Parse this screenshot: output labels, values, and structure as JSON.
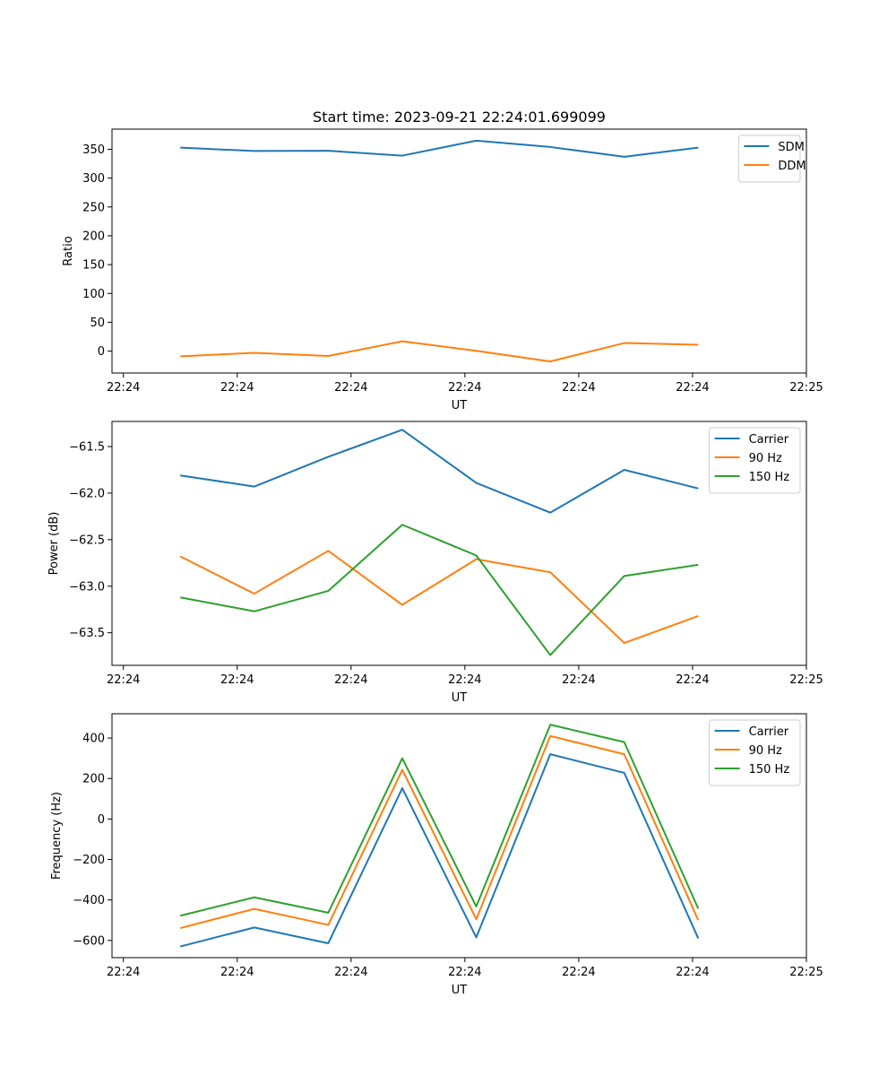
{
  "figure": {
    "title": "Start time: 2023-09-21 22:24:01.699099"
  },
  "colors": {
    "blue": "#1f77b4",
    "orange": "#ff7f0e",
    "green": "#2ca02c"
  },
  "chart_data": [
    {
      "type": "line",
      "xlabel": "UT",
      "ylabel": "Ratio",
      "x_positions": [
        0.5,
        1.15,
        1.8,
        2.45,
        3.1,
        3.75,
        4.4,
        5.05
      ],
      "xlim": [
        -0.1,
        6.0
      ],
      "x_ticks": [
        0,
        1,
        2,
        3,
        4,
        5,
        6
      ],
      "x_tick_labels": [
        "22:24",
        "22:24",
        "22:24",
        "22:24",
        "22:24",
        "22:24",
        "22:25"
      ],
      "ylim": [
        -38,
        385
      ],
      "y_ticks": [
        0,
        50,
        100,
        150,
        200,
        250,
        300,
        350
      ],
      "y_tick_labels": [
        "0",
        "50",
        "100",
        "150",
        "200",
        "250",
        "300",
        "350"
      ],
      "legend_position": "top-right",
      "series": [
        {
          "name": "SDM",
          "color": "blue",
          "values": [
            353,
            347,
            347.5,
            339,
            365,
            354,
            337,
            353
          ]
        },
        {
          "name": "DDM",
          "color": "orange",
          "values": [
            -9,
            -3,
            -8.5,
            17,
            0.5,
            -18,
            14,
            11
          ]
        }
      ]
    },
    {
      "type": "line",
      "xlabel": "UT",
      "ylabel": "Power (dB)",
      "x_positions": [
        0.5,
        1.15,
        1.8,
        2.45,
        3.1,
        3.75,
        4.4,
        5.05
      ],
      "xlim": [
        -0.1,
        6.0
      ],
      "x_ticks": [
        0,
        1,
        2,
        3,
        4,
        5,
        6
      ],
      "x_tick_labels": [
        "22:24",
        "22:24",
        "22:24",
        "22:24",
        "22:24",
        "22:24",
        "22:25"
      ],
      "ylim": [
        -63.85,
        -61.23
      ],
      "y_ticks": [
        -63.5,
        -63.0,
        -62.5,
        -62.0,
        -61.5
      ],
      "y_tick_labels": [
        "−63.5",
        "−63.0",
        "−62.5",
        "−62.0",
        "−61.5"
      ],
      "legend_position": "top-right",
      "series": [
        {
          "name": "Carrier",
          "color": "blue",
          "values": [
            -61.81,
            -61.93,
            -61.61,
            -61.32,
            -61.89,
            -62.21,
            -61.75,
            -61.95
          ]
        },
        {
          "name": "90 Hz",
          "color": "orange",
          "values": [
            -62.68,
            -63.08,
            -62.62,
            -63.2,
            -62.71,
            -62.85,
            -63.61,
            -63.32
          ]
        },
        {
          "name": "150 Hz",
          "color": "green",
          "values": [
            -63.12,
            -63.27,
            -63.05,
            -62.34,
            -62.67,
            -63.74,
            -62.89,
            -62.77
          ]
        }
      ]
    },
    {
      "type": "line",
      "xlabel": "UT",
      "ylabel": "Frequency (Hz)",
      "x_positions": [
        0.5,
        1.15,
        1.8,
        2.45,
        3.1,
        3.75,
        4.4,
        5.05
      ],
      "xlim": [
        -0.1,
        6.0
      ],
      "x_ticks": [
        0,
        1,
        2,
        3,
        4,
        5,
        6
      ],
      "x_tick_labels": [
        "22:24",
        "22:24",
        "22:24",
        "22:24",
        "22:24",
        "22:24",
        "22:25"
      ],
      "ylim": [
        -685,
        520
      ],
      "y_ticks": [
        -600,
        -400,
        -200,
        0,
        200,
        400
      ],
      "y_tick_labels": [
        "−600",
        "−400",
        "−200",
        "0",
        "200",
        "400"
      ],
      "legend_position": "top-right",
      "series": [
        {
          "name": "Carrier",
          "color": "blue",
          "values": [
            -630,
            -536,
            -614,
            152,
            -585,
            320,
            228,
            -590
          ]
        },
        {
          "name": "90 Hz",
          "color": "orange",
          "values": [
            -539,
            -444,
            -523,
            243,
            -495,
            410,
            320,
            -500
          ]
        },
        {
          "name": "150 Hz",
          "color": "green",
          "values": [
            -478,
            -387,
            -463,
            300,
            -432,
            466,
            380,
            -443
          ]
        }
      ]
    }
  ]
}
